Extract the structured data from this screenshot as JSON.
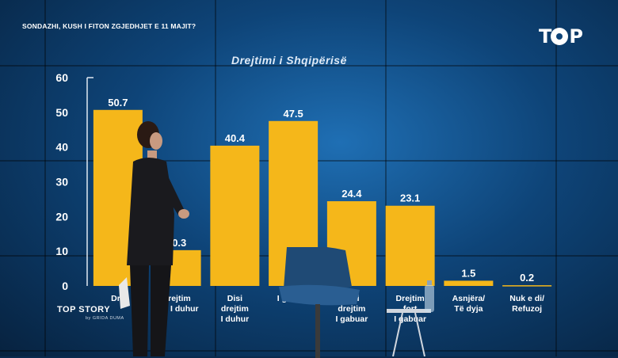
{
  "ticker": "SONDAZHI, KUSH I FITON ZGJEDHJET E 11 MAJIT?",
  "logo": {
    "icon": "top-channel-logo",
    "text": "TOP"
  },
  "show": {
    "title": "TOP STORY",
    "subtitle": "by GRIDA DUMA"
  },
  "chart_data": {
    "type": "bar",
    "title": "Drejtimi i Shqipërisë",
    "xlabel": "",
    "ylabel": "",
    "ylim": [
      0,
      60
    ],
    "yticks": [
      "0",
      "10",
      "20",
      "30",
      "40",
      "50",
      "60"
    ],
    "categories": [
      "Drejtim fort I duhur",
      "Drejtim fort I duhur",
      "Disi drejtim I duhur",
      "Drejtim I gabuar",
      "Disi drejtim I gabuar",
      "Drejtim fort I gabuar",
      "Asnjëra/ Të dyja",
      "Nuk e di/ Refuzoj"
    ],
    "category_lines": [
      [
        "Dre"
      ],
      [
        "Drejtim",
        "fort I duhur"
      ],
      [
        "Disi",
        "drejtim",
        "I duhur"
      ],
      [
        "I gabuar"
      ],
      [
        "Disi",
        "drejtim",
        "I gabuar"
      ],
      [
        "Drejtim",
        "fort",
        "I gabuar"
      ],
      [
        "Asnjëra/",
        "Të dyja"
      ],
      [
        "Nuk e di/",
        "Refuzoj"
      ]
    ],
    "values": [
      50.7,
      10.3,
      40.4,
      47.5,
      24.4,
      23.1,
      1.5,
      0.2
    ],
    "value_labels": [
      "50.7",
      "10.3",
      "40.4",
      "47.5",
      "24.4",
      "23.1",
      "1.5",
      "0.2"
    ],
    "bar_color": "#f5b71a",
    "grid": false,
    "legend": "none"
  }
}
